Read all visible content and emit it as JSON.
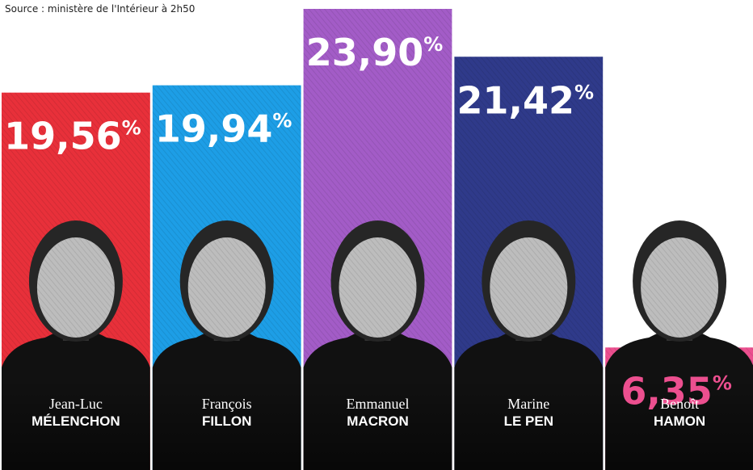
{
  "source": "Source : ministère de l'Intérieur à 2h50",
  "chart_data": {
    "type": "bar",
    "title": "",
    "xlabel": "",
    "ylabel": "",
    "value_suffix": "%",
    "categories": [
      "Jean-Luc MÉLENCHON",
      "François FILLON",
      "Emmanuel MACRON",
      "Marine LE PEN",
      "Benoît HAMON"
    ],
    "values": [
      19.56,
      19.94,
      23.9,
      21.42,
      6.35
    ],
    "bars": [
      {
        "first_name": "Jean-Luc",
        "last_name": "MÉLENCHON",
        "value": 19.56,
        "label": "19,56",
        "color": "#e8303a",
        "label_color": "#ffffff"
      },
      {
        "first_name": "François",
        "last_name": "FILLON",
        "value": 19.94,
        "label": "19,94",
        "color": "#1d9ee6",
        "label_color": "#ffffff"
      },
      {
        "first_name": "Emmanuel",
        "last_name": "MACRON",
        "value": 23.9,
        "label": "23,90",
        "color": "#a35cc7",
        "label_color": "#ffffff"
      },
      {
        "first_name": "Marine",
        "last_name": "LE PEN",
        "value": 21.42,
        "label": "21,42",
        "color": "#2f3a8a",
        "label_color": "#ffffff"
      },
      {
        "first_name": "Benoît",
        "last_name": "HAMON",
        "value": 6.35,
        "label": "6,35",
        "color": "#ec4f8f",
        "label_color": "#ec4f8f"
      }
    ],
    "grid": false,
    "legend": "none"
  }
}
